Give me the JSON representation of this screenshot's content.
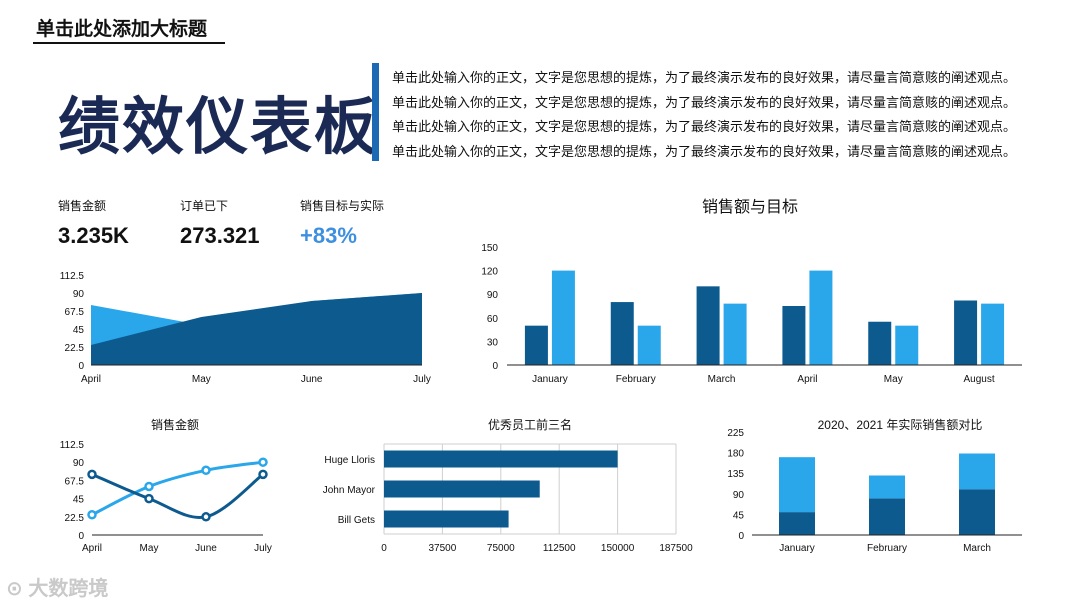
{
  "header": {
    "slide_title": "单击此处添加大标题",
    "main_title": "绩效仪表板",
    "body_lines": [
      "单击此处输入你的正文，文字是您思想的提炼，为了最终演示发布的良好效果，请尽量言简意赅的阐述观点。",
      "单击此处输入你的正文，文字是您思想的提炼，为了最终演示发布的良好效果，请尽量言简意赅的阐述观点。",
      "单击此处输入你的正文，文字是您思想的提炼，为了最终演示发布的良好效果，请尽量言简意赅的阐述观点。",
      "单击此处输入你的正文，文字是您思想的提炼，为了最终演示发布的良好效果，请尽量言简意赅的阐述观点。"
    ]
  },
  "kpis": [
    {
      "label": "销售金额",
      "value": "3.235K"
    },
    {
      "label": "订单已下",
      "value": "273.321"
    },
    {
      "label": "销售目标与实际",
      "value": "+83%"
    }
  ],
  "watermark": "大数跨境",
  "colors": {
    "dark": "#0d5a8f",
    "light": "#2aa6ea",
    "title": "#1b2a55",
    "accent_bar": "#1b6ab3"
  },
  "chart_data": [
    {
      "id": "area",
      "type": "area",
      "title": "",
      "categories": [
        "April",
        "May",
        "June",
        "July"
      ],
      "series": [
        {
          "name": "",
          "values": [
            75,
            50,
            80,
            90
          ],
          "color": "#2aa6ea"
        },
        {
          "name": "",
          "values": [
            25,
            60,
            80,
            90
          ],
          "color": "#0d5a8f"
        }
      ],
      "ylim": [
        0,
        112.5
      ],
      "yticks": [
        "0",
        "22.5",
        "45",
        "67.5",
        "90",
        "112.5"
      ],
      "grid": false
    },
    {
      "id": "bar",
      "type": "bar",
      "title": "销售额与目标",
      "categories": [
        "January",
        "February",
        "March",
        "April",
        "May",
        "August"
      ],
      "series": [
        {
          "name": "",
          "values": [
            50,
            80,
            100,
            75,
            55,
            82
          ],
          "color": "#0d5a8f"
        },
        {
          "name": "",
          "values": [
            120,
            50,
            78,
            120,
            50,
            78
          ],
          "color": "#2aa6ea"
        }
      ],
      "ylim": [
        0,
        150
      ],
      "yticks": [
        "0",
        "30",
        "60",
        "90",
        "120",
        "150"
      ],
      "grid": false
    },
    {
      "id": "line",
      "type": "line",
      "title": "销售金额",
      "categories": [
        "April",
        "May",
        "June",
        "July"
      ],
      "series": [
        {
          "name": "",
          "values": [
            25,
            60,
            80,
            90
          ],
          "color": "#2aa6ea"
        },
        {
          "name": "",
          "values": [
            75,
            45,
            22.5,
            75
          ],
          "color": "#0d5a8f"
        }
      ],
      "ylim": [
        0,
        112.5
      ],
      "yticks": [
        "0",
        "22.5",
        "45",
        "67.5",
        "90",
        "112.5"
      ],
      "grid": false
    },
    {
      "id": "hbar",
      "type": "bar",
      "orientation": "horizontal",
      "title": "优秀员工前三名",
      "categories": [
        "Huge Lloris",
        "John Mayor",
        "Bill Gets"
      ],
      "values": [
        150000,
        100000,
        80000
      ],
      "color": "#0d5a8f",
      "xlim": [
        0,
        187500
      ],
      "xticks": [
        "0",
        "37500",
        "75000",
        "112500",
        "150000",
        "187500"
      ],
      "grid": true
    },
    {
      "id": "stacked",
      "type": "bar",
      "stacked": true,
      "title": "2020、2021 年实际销售额对比",
      "categories": [
        "January",
        "February",
        "March"
      ],
      "series": [
        {
          "name": "",
          "values": [
            50,
            80,
            100
          ],
          "color": "#0d5a8f"
        },
        {
          "name": "",
          "values": [
            120,
            50,
            78
          ],
          "color": "#2aa6ea"
        }
      ],
      "ylim": [
        0,
        225
      ],
      "yticks": [
        "0",
        "45",
        "90",
        "135",
        "180",
        "225"
      ],
      "grid": false
    }
  ]
}
